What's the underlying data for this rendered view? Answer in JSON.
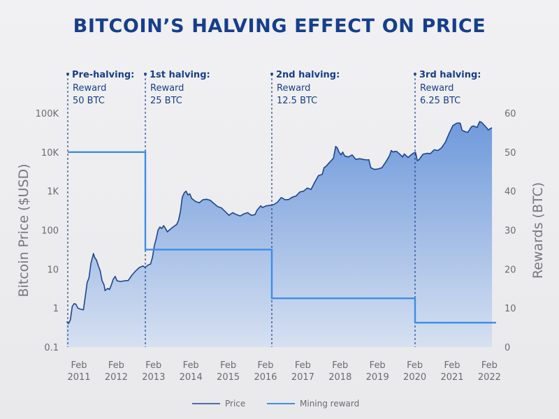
{
  "chart_data": {
    "type": "area",
    "title": "BITCOIN’S HALVING EFFECT ON PRICE",
    "xlabel": "",
    "ylabel": "Bitcoin Price ($USD)",
    "y2label": "Rewards (BTC)",
    "y_scale": "log",
    "ylim": [
      0.1,
      100000
    ],
    "y2lim": [
      0,
      60
    ],
    "xlim": [
      2010.75,
      2022.15
    ],
    "grid": false,
    "legend_position": "bottom-center",
    "y_ticks": [
      {
        "value": 100000,
        "label": "100K"
      },
      {
        "value": 10000,
        "label": "10K"
      },
      {
        "value": 1000,
        "label": "1K"
      },
      {
        "value": 100,
        "label": "100"
      },
      {
        "value": 10,
        "label": "10"
      },
      {
        "value": 1,
        "label": "1"
      },
      {
        "value": 0.1,
        "label": "0.1"
      }
    ],
    "y2_ticks": [
      {
        "value": 60,
        "label": "60"
      },
      {
        "value": 50,
        "label": "50"
      },
      {
        "value": 40,
        "label": "40"
      },
      {
        "value": 30,
        "label": "30"
      },
      {
        "value": 20,
        "label": "20"
      },
      {
        "value": 10,
        "label": "10"
      },
      {
        "value": 0,
        "label": "0"
      }
    ],
    "x_ticks": [
      {
        "value": 2011.08,
        "line1": "Feb",
        "line2": "2011"
      },
      {
        "value": 2012.08,
        "line1": "Feb",
        "line2": "2012"
      },
      {
        "value": 2013.08,
        "line1": "Feb",
        "line2": "2013"
      },
      {
        "value": 2014.08,
        "line1": "Feb",
        "line2": "2014"
      },
      {
        "value": 2015.08,
        "line1": "Feb",
        "line2": "2015"
      },
      {
        "value": 2016.08,
        "line1": "Feb",
        "line2": "2016"
      },
      {
        "value": 2017.08,
        "line1": "Feb",
        "line2": "2017"
      },
      {
        "value": 2018.08,
        "line1": "Feb",
        "line2": "2018"
      },
      {
        "value": 2019.08,
        "line1": "Feb",
        "line2": "2019"
      },
      {
        "value": 2020.08,
        "line1": "Feb",
        "line2": "2020"
      },
      {
        "value": 2021.08,
        "line1": "Feb",
        "line2": "2021"
      },
      {
        "value": 2022.08,
        "line1": "Feb",
        "line2": "2022"
      }
    ],
    "series": [
      {
        "name": "Price",
        "axis": "left",
        "color": "#1d4590",
        "fill_top": "#6f9adb",
        "fill_bottom": "#d6e0f1",
        "points": [
          [
            2010.75,
            0.45
          ],
          [
            2010.8,
            0.4
          ],
          [
            2010.85,
            0.5
          ],
          [
            2010.9,
            1.1
          ],
          [
            2010.95,
            1.3
          ],
          [
            2011.0,
            1.25
          ],
          [
            2011.05,
            1.0
          ],
          [
            2011.1,
            0.95
          ],
          [
            2011.2,
            0.9
          ],
          [
            2011.25,
            2.0
          ],
          [
            2011.3,
            4.5
          ],
          [
            2011.35,
            6.0
          ],
          [
            2011.4,
            14
          ],
          [
            2011.43,
            18
          ],
          [
            2011.47,
            25
          ],
          [
            2011.5,
            20
          ],
          [
            2011.55,
            17
          ],
          [
            2011.6,
            12
          ],
          [
            2011.65,
            9
          ],
          [
            2011.7,
            5
          ],
          [
            2011.75,
            4
          ],
          [
            2011.78,
            2.8
          ],
          [
            2011.85,
            3.2
          ],
          [
            2011.9,
            3.0
          ],
          [
            2011.95,
            4.0
          ],
          [
            2012.0,
            5.5
          ],
          [
            2012.05,
            6.5
          ],
          [
            2012.1,
            5.0
          ],
          [
            2012.2,
            4.8
          ],
          [
            2012.3,
            5.0
          ],
          [
            2012.4,
            5.1
          ],
          [
            2012.5,
            7.0
          ],
          [
            2012.6,
            9.0
          ],
          [
            2012.7,
            11
          ],
          [
            2012.8,
            12
          ],
          [
            2012.85,
            11
          ],
          [
            2012.9,
            12
          ],
          [
            2012.95,
            13
          ],
          [
            2013.0,
            13.5
          ],
          [
            2013.05,
            20
          ],
          [
            2013.1,
            40
          ],
          [
            2013.15,
            60
          ],
          [
            2013.2,
            100
          ],
          [
            2013.25,
            120
          ],
          [
            2013.3,
            110
          ],
          [
            2013.35,
            130
          ],
          [
            2013.4,
            110
          ],
          [
            2013.45,
            90
          ],
          [
            2013.5,
            100
          ],
          [
            2013.6,
            120
          ],
          [
            2013.7,
            140
          ],
          [
            2013.75,
            180
          ],
          [
            2013.8,
            300
          ],
          [
            2013.85,
            700
          ],
          [
            2013.9,
            900
          ],
          [
            2013.95,
            1000
          ],
          [
            2014.0,
            800
          ],
          [
            2014.05,
            850
          ],
          [
            2014.1,
            650
          ],
          [
            2014.2,
            550
          ],
          [
            2014.3,
            500
          ],
          [
            2014.4,
            600
          ],
          [
            2014.5,
            620
          ],
          [
            2014.6,
            580
          ],
          [
            2014.7,
            480
          ],
          [
            2014.8,
            400
          ],
          [
            2014.9,
            370
          ],
          [
            2015.0,
            300
          ],
          [
            2015.1,
            240
          ],
          [
            2015.2,
            280
          ],
          [
            2015.3,
            250
          ],
          [
            2015.4,
            230
          ],
          [
            2015.5,
            260
          ],
          [
            2015.6,
            280
          ],
          [
            2015.7,
            240
          ],
          [
            2015.8,
            250
          ],
          [
            2015.85,
            320
          ],
          [
            2015.95,
            420
          ],
          [
            2016.0,
            380
          ],
          [
            2016.1,
            420
          ],
          [
            2016.2,
            430
          ],
          [
            2016.3,
            450
          ],
          [
            2016.4,
            520
          ],
          [
            2016.5,
            680
          ],
          [
            2016.55,
            650
          ],
          [
            2016.6,
            600
          ],
          [
            2016.7,
            610
          ],
          [
            2016.8,
            700
          ],
          [
            2016.9,
            750
          ],
          [
            2017.0,
            950
          ],
          [
            2017.1,
            1000
          ],
          [
            2017.2,
            1200
          ],
          [
            2017.3,
            1100
          ],
          [
            2017.4,
            1700
          ],
          [
            2017.5,
            2500
          ],
          [
            2017.6,
            2700
          ],
          [
            2017.65,
            4000
          ],
          [
            2017.7,
            4300
          ],
          [
            2017.8,
            5500
          ],
          [
            2017.9,
            7000
          ],
          [
            2017.96,
            14000
          ],
          [
            2018.0,
            13000
          ],
          [
            2018.05,
            10000
          ],
          [
            2018.1,
            8500
          ],
          [
            2018.15,
            10000
          ],
          [
            2018.2,
            8000
          ],
          [
            2018.3,
            7500
          ],
          [
            2018.4,
            8500
          ],
          [
            2018.5,
            6500
          ],
          [
            2018.6,
            6800
          ],
          [
            2018.7,
            6500
          ],
          [
            2018.8,
            6300
          ],
          [
            2018.85,
            6400
          ],
          [
            2018.9,
            4000
          ],
          [
            2019.0,
            3600
          ],
          [
            2019.1,
            3700
          ],
          [
            2019.2,
            4000
          ],
          [
            2019.3,
            5500
          ],
          [
            2019.4,
            8000
          ],
          [
            2019.45,
            11000
          ],
          [
            2019.5,
            10000
          ],
          [
            2019.55,
            10500
          ],
          [
            2019.6,
            10300
          ],
          [
            2019.7,
            8500
          ],
          [
            2019.75,
            7500
          ],
          [
            2019.8,
            9000
          ],
          [
            2019.9,
            7300
          ],
          [
            2020.0,
            8800
          ],
          [
            2020.05,
            9500
          ],
          [
            2020.1,
            9800
          ],
          [
            2020.15,
            6000
          ],
          [
            2020.2,
            6500
          ],
          [
            2020.3,
            8800
          ],
          [
            2020.4,
            9300
          ],
          [
            2020.5,
            9200
          ],
          [
            2020.6,
            11500
          ],
          [
            2020.7,
            11000
          ],
          [
            2020.8,
            13000
          ],
          [
            2020.9,
            18000
          ],
          [
            2021.0,
            30000
          ],
          [
            2021.1,
            48000
          ],
          [
            2021.2,
            55000
          ],
          [
            2021.25,
            56000
          ],
          [
            2021.3,
            55000
          ],
          [
            2021.35,
            36000
          ],
          [
            2021.45,
            33000
          ],
          [
            2021.5,
            32000
          ],
          [
            2021.6,
            45000
          ],
          [
            2021.65,
            47000
          ],
          [
            2021.75,
            43000
          ],
          [
            2021.82,
            61000
          ],
          [
            2021.88,
            57000
          ],
          [
            2021.95,
            48000
          ],
          [
            2022.0,
            43000
          ],
          [
            2022.05,
            37000
          ],
          [
            2022.1,
            40000
          ],
          [
            2022.15,
            42000
          ]
        ]
      },
      {
        "name": "Mining reward",
        "axis": "right",
        "color": "#3b8ee8",
        "step": [
          {
            "from": 2010.75,
            "to": 2012.9,
            "value": 50
          },
          {
            "from": 2012.9,
            "to": 2016.53,
            "value": 25
          },
          {
            "from": 2016.53,
            "to": 2020.37,
            "value": 12.5
          },
          {
            "from": 2020.37,
            "to": 2022.15,
            "value": 6.25
          }
        ]
      }
    ],
    "annotations": [
      {
        "x": 2010.45,
        "head": "Pre-halving:",
        "line2": "Reward",
        "line3": "50 BTC"
      },
      {
        "x": 2012.9,
        "head": "1st halving:",
        "line2": "Reward",
        "line3": "25 BTC"
      },
      {
        "x": 2016.53,
        "head": "2nd halving:",
        "line2": "Reward",
        "line3": "12.5 BTC"
      },
      {
        "x": 2020.37,
        "head": "3rd halving:",
        "line2": "Reward",
        "line3": "6.25 BTC"
      }
    ],
    "legend": [
      {
        "label": "Price",
        "color": "#1d4590"
      },
      {
        "label": "Mining reward",
        "color": "#3b8ee8"
      }
    ]
  }
}
